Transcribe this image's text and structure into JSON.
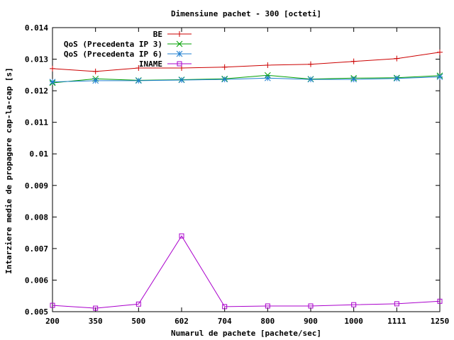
{
  "chart_data": {
    "type": "line",
    "title": "Dimensiune pachet - 300 [octeti]",
    "xlabel": "Numarul de pachete [pachete/sec]",
    "ylabel": "Intarziere medie de propagare cap-la-cap [s]",
    "categories": [
      "200",
      "350",
      "500",
      "602",
      "704",
      "800",
      "900",
      "1000",
      "1111",
      "1250"
    ],
    "ylim": [
      0.005,
      0.014
    ],
    "yticks": [
      "0.005",
      "0.006",
      "0.007",
      "0.008",
      "0.009",
      "0.01",
      "0.011",
      "0.012",
      "0.013",
      "0.014"
    ],
    "ytick_values": [
      0.005,
      0.006,
      0.007,
      0.008,
      0.009,
      0.01,
      0.011,
      0.012,
      0.013,
      0.014
    ],
    "grid": false,
    "legend_position": "top-left",
    "series": [
      {
        "name": "BE",
        "color": "#cc0000",
        "marker": "plus",
        "values": [
          0.0127,
          0.01261,
          0.01272,
          0.01272,
          0.01275,
          0.01281,
          0.01284,
          0.01293,
          0.01302,
          0.01322
        ]
      },
      {
        "name": "QoS (Precedenta IP 3)",
        "color": "#00a000",
        "marker": "cross",
        "values": [
          0.01225,
          0.01238,
          0.01233,
          0.01235,
          0.01238,
          0.01249,
          0.01237,
          0.0124,
          0.01241,
          0.01248
        ]
      },
      {
        "name": "QoS (Precedenta IP 6)",
        "color": "#1f7fd0",
        "marker": "star",
        "values": [
          0.01228,
          0.01232,
          0.01232,
          0.01234,
          0.01236,
          0.0124,
          0.01236,
          0.01236,
          0.01239,
          0.01244
        ]
      },
      {
        "name": "INAME",
        "color": "#aa00cc",
        "marker": "square",
        "values": [
          0.0052,
          0.00511,
          0.00524,
          0.0074,
          0.00516,
          0.00518,
          0.00518,
          0.00522,
          0.00525,
          0.00533
        ]
      }
    ]
  }
}
